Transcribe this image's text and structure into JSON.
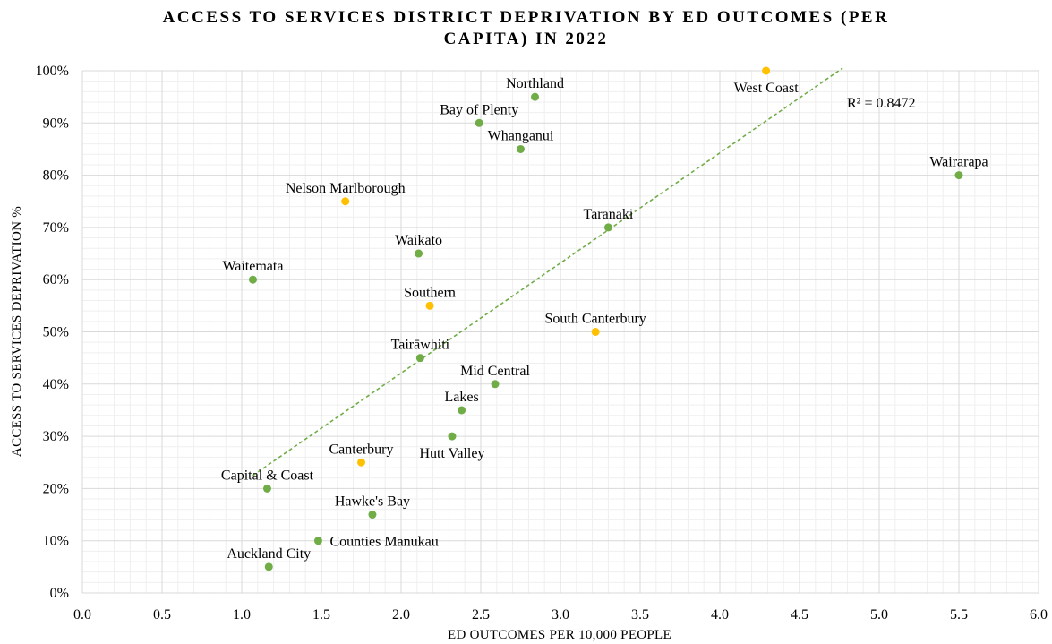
{
  "chart_data": {
    "type": "scatter",
    "title_line1": "ACCESS TO SERVICES DISTRICT DEPRIVATION BY ED OUTCOMES (PER",
    "title_line2": "CAPITA) IN 2022",
    "xlabel": "ED OUTCOMES PER 10,000 PEOPLE",
    "ylabel": "ACCESS TO SERVICES DEPRIVATION  %",
    "xlim": [
      0,
      6
    ],
    "ylim": [
      0,
      100
    ],
    "x_ticks": [
      "0.0",
      "0.5",
      "1.0",
      "1.5",
      "2.0",
      "2.5",
      "3.0",
      "3.5",
      "4.0",
      "4.5",
      "5.0",
      "5.5",
      "6.0"
    ],
    "y_ticks": [
      "0%",
      "10%",
      "20%",
      "30%",
      "40%",
      "50%",
      "60%",
      "70%",
      "80%",
      "90%",
      "100%"
    ],
    "grid": true,
    "colors": {
      "green": "#70ad47",
      "gold": "#ffc000",
      "grid_major": "#d9d9d9",
      "grid_minor": "#efefef"
    },
    "points": [
      {
        "label": "Northland",
        "x": 2.84,
        "y": 95,
        "color": "green",
        "label_pos": "above"
      },
      {
        "label": "West Coast",
        "x": 4.29,
        "y": 100,
        "color": "gold",
        "label_pos": "below"
      },
      {
        "label": "Bay of Plenty",
        "x": 2.49,
        "y": 90,
        "color": "green",
        "label_pos": "above"
      },
      {
        "label": "Whanganui",
        "x": 2.75,
        "y": 85,
        "color": "green",
        "label_pos": "above"
      },
      {
        "label": "Wairarapa",
        "x": 5.5,
        "y": 80,
        "color": "green",
        "label_pos": "above"
      },
      {
        "label": "Nelson Marlborough",
        "x": 1.65,
        "y": 75,
        "color": "gold",
        "label_pos": "above"
      },
      {
        "label": "Taranaki",
        "x": 3.3,
        "y": 70,
        "color": "green",
        "label_pos": "above"
      },
      {
        "label": "Waikato",
        "x": 2.11,
        "y": 65,
        "color": "green",
        "label_pos": "above"
      },
      {
        "label": "Waitematā",
        "x": 1.07,
        "y": 60,
        "color": "green",
        "label_pos": "above"
      },
      {
        "label": "Southern",
        "x": 2.18,
        "y": 55,
        "color": "gold",
        "label_pos": "above"
      },
      {
        "label": "South Canterbury",
        "x": 3.22,
        "y": 50,
        "color": "gold",
        "label_pos": "above"
      },
      {
        "label": "Tairāwhiti",
        "x": 2.12,
        "y": 45,
        "color": "green",
        "label_pos": "above"
      },
      {
        "label": "Mid Central",
        "x": 2.59,
        "y": 40,
        "color": "green",
        "label_pos": "above"
      },
      {
        "label": "Lakes",
        "x": 2.38,
        "y": 35,
        "color": "green",
        "label_pos": "above"
      },
      {
        "label": "Hutt Valley",
        "x": 2.32,
        "y": 30,
        "color": "green",
        "label_pos": "below"
      },
      {
        "label": "Canterbury",
        "x": 1.75,
        "y": 25,
        "color": "gold",
        "label_pos": "above"
      },
      {
        "label": "Capital & Coast",
        "x": 1.16,
        "y": 20,
        "color": "green",
        "label_pos": "above"
      },
      {
        "label": "Hawke's Bay",
        "x": 1.82,
        "y": 15,
        "color": "green",
        "label_pos": "above"
      },
      {
        "label": "Counties Manukau",
        "x": 1.48,
        "y": 10,
        "color": "green",
        "label_pos": "right"
      },
      {
        "label": "Auckland City",
        "x": 1.17,
        "y": 5,
        "color": "green",
        "label_pos": "above"
      }
    ],
    "trendline": {
      "type": "linear",
      "color": "green",
      "style": "dashed",
      "x_start": 1.07,
      "y_start": 22.5,
      "x_end": 4.77,
      "y_end": 100.5,
      "r2_text": "R² = 0.8472"
    }
  }
}
